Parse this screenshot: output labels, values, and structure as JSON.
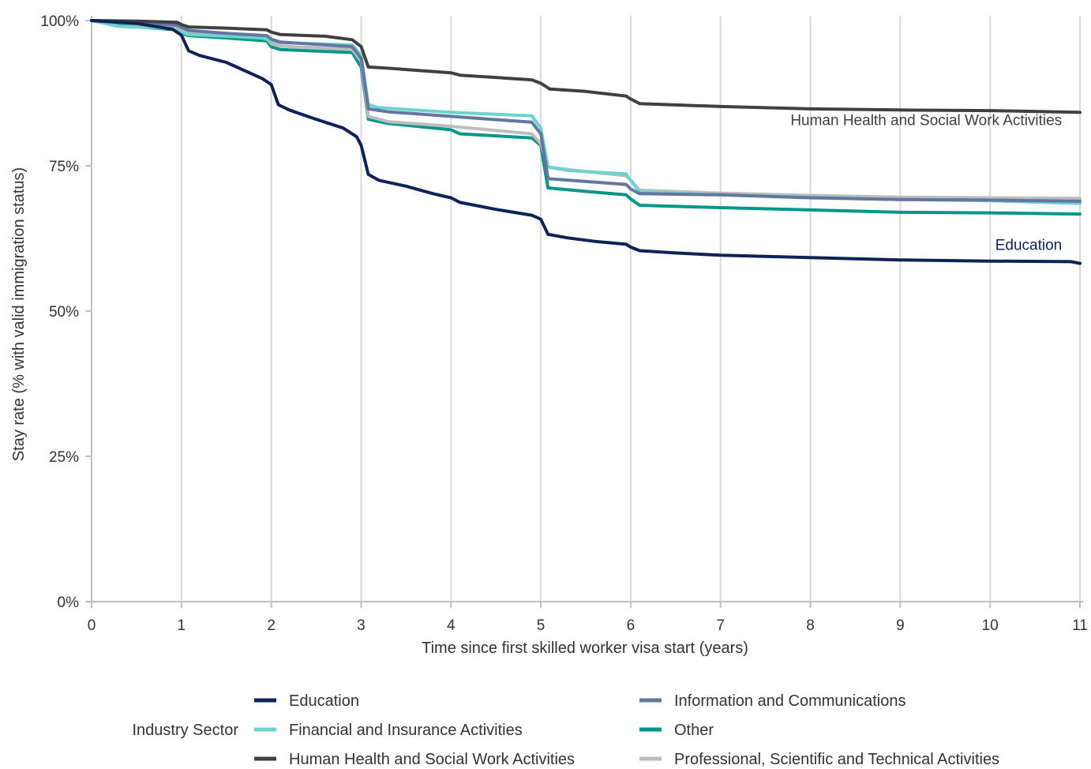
{
  "chart_data": {
    "type": "line",
    "xlabel": "Time since first skilled worker visa start (years)",
    "ylabel": "Stay rate (% with valid immigration status)",
    "xlim": [
      0,
      11
    ],
    "ylim": [
      0,
      100
    ],
    "x_ticks": [
      "0",
      "1",
      "2",
      "3",
      "4",
      "5",
      "6",
      "7",
      "8",
      "9",
      "10",
      "11"
    ],
    "y_ticks": [
      {
        "value": 0,
        "label": "0%"
      },
      {
        "value": 25,
        "label": "25%"
      },
      {
        "value": 50,
        "label": "50%"
      },
      {
        "value": 75,
        "label": "75%"
      },
      {
        "value": 100,
        "label": "100%"
      }
    ],
    "grid": "vertical",
    "legend": {
      "title": "Industry Sector",
      "position": "bottom"
    },
    "annotations": [
      {
        "text": "Human Health and Social Work Activities",
        "x": 10.8,
        "y": 82.0,
        "color": "#404040"
      },
      {
        "text": "Education",
        "x": 10.8,
        "y": 60.5,
        "color": "#0d2357"
      }
    ],
    "series": [
      {
        "name": "Education",
        "color": "#0d2357",
        "points": [
          [
            0,
            100
          ],
          [
            0.5,
            99.5
          ],
          [
            0.9,
            98.5
          ],
          [
            1.0,
            97.5
          ],
          [
            1.08,
            94.8
          ],
          [
            1.2,
            94.0
          ],
          [
            1.5,
            92.8
          ],
          [
            1.9,
            90.0
          ],
          [
            2.0,
            89.0
          ],
          [
            2.08,
            85.5
          ],
          [
            2.2,
            84.6
          ],
          [
            2.5,
            83.0
          ],
          [
            2.8,
            81.5
          ],
          [
            2.95,
            80.0
          ],
          [
            3.0,
            78.5
          ],
          [
            3.08,
            73.5
          ],
          [
            3.2,
            72.5
          ],
          [
            3.5,
            71.5
          ],
          [
            3.8,
            70.2
          ],
          [
            4.0,
            69.5
          ],
          [
            4.1,
            68.7
          ],
          [
            4.5,
            67.5
          ],
          [
            4.9,
            66.5
          ],
          [
            5.0,
            65.8
          ],
          [
            5.08,
            63.2
          ],
          [
            5.3,
            62.6
          ],
          [
            5.6,
            62.0
          ],
          [
            5.95,
            61.5
          ],
          [
            6.0,
            61.0
          ],
          [
            6.1,
            60.4
          ],
          [
            6.5,
            60.0
          ],
          [
            7,
            59.6
          ],
          [
            8,
            59.2
          ],
          [
            9,
            58.8
          ],
          [
            10,
            58.6
          ],
          [
            10.9,
            58.5
          ],
          [
            11,
            58.2
          ]
        ]
      },
      {
        "name": "Financial and Insurance Activities",
        "color": "#6fd3cd",
        "points": [
          [
            0,
            100
          ],
          [
            0.3,
            99.0
          ],
          [
            0.9,
            98.6
          ],
          [
            1.0,
            98.0
          ],
          [
            1.08,
            97.6
          ],
          [
            1.5,
            97.3
          ],
          [
            1.9,
            97.0
          ],
          [
            2.0,
            96.5
          ],
          [
            2.1,
            96.2
          ],
          [
            2.9,
            95.8
          ],
          [
            3.0,
            94.0
          ],
          [
            3.08,
            85.5
          ],
          [
            3.2,
            85.0
          ],
          [
            4,
            84.2
          ],
          [
            4.9,
            83.6
          ],
          [
            5.0,
            81.5
          ],
          [
            5.08,
            74.8
          ],
          [
            5.3,
            74.2
          ],
          [
            5.95,
            73.6
          ],
          [
            6.0,
            72.5
          ],
          [
            6.1,
            70.5
          ],
          [
            7,
            70.0
          ],
          [
            8,
            69.6
          ],
          [
            9,
            69.2
          ],
          [
            10,
            69.0
          ],
          [
            11,
            68.5
          ]
        ]
      },
      {
        "name": "Human Health and Social Work Activities",
        "color": "#404040",
        "points": [
          [
            0,
            100
          ],
          [
            0.5,
            99.9
          ],
          [
            0.95,
            99.7
          ],
          [
            1.0,
            99.3
          ],
          [
            1.08,
            98.9
          ],
          [
            1.5,
            98.7
          ],
          [
            1.95,
            98.4
          ],
          [
            2.0,
            98.0
          ],
          [
            2.1,
            97.6
          ],
          [
            2.6,
            97.3
          ],
          [
            2.9,
            96.7
          ],
          [
            3.0,
            95.5
          ],
          [
            3.08,
            92.0
          ],
          [
            3.3,
            91.8
          ],
          [
            4,
            91.0
          ],
          [
            4.1,
            90.6
          ],
          [
            4.9,
            89.8
          ],
          [
            5.0,
            89.2
          ],
          [
            5.1,
            88.2
          ],
          [
            5.5,
            87.8
          ],
          [
            5.95,
            87.0
          ],
          [
            6.0,
            86.5
          ],
          [
            6.1,
            85.7
          ],
          [
            7,
            85.2
          ],
          [
            8,
            84.8
          ],
          [
            9,
            84.6
          ],
          [
            10,
            84.5
          ],
          [
            11,
            84.2
          ]
        ]
      },
      {
        "name": "Information and Communications",
        "color": "#6475a1",
        "points": [
          [
            0,
            100
          ],
          [
            0.5,
            99.6
          ],
          [
            0.95,
            99.2
          ],
          [
            1.0,
            98.8
          ],
          [
            1.08,
            98.3
          ],
          [
            1.5,
            97.8
          ],
          [
            1.95,
            97.4
          ],
          [
            2.0,
            96.8
          ],
          [
            2.1,
            96.3
          ],
          [
            2.9,
            95.5
          ],
          [
            3.0,
            93.5
          ],
          [
            3.08,
            84.8
          ],
          [
            3.3,
            84.3
          ],
          [
            4,
            83.5
          ],
          [
            4.9,
            82.5
          ],
          [
            5.0,
            80.5
          ],
          [
            5.08,
            72.8
          ],
          [
            5.5,
            72.3
          ],
          [
            5.95,
            71.8
          ],
          [
            6.0,
            71.0
          ],
          [
            6.1,
            70.2
          ],
          [
            7,
            70.0
          ],
          [
            8,
            69.5
          ],
          [
            9,
            69.2
          ],
          [
            10,
            69.1
          ],
          [
            11,
            68.9
          ]
        ]
      },
      {
        "name": "Other",
        "color": "#009688",
        "points": [
          [
            0,
            100
          ],
          [
            0.5,
            98.9
          ],
          [
            0.95,
            98.4
          ],
          [
            1.0,
            97.8
          ],
          [
            1.08,
            97.4
          ],
          [
            1.5,
            97.0
          ],
          [
            1.95,
            96.5
          ],
          [
            2.0,
            95.5
          ],
          [
            2.1,
            95.0
          ],
          [
            2.9,
            94.5
          ],
          [
            3.0,
            92.0
          ],
          [
            3.08,
            83.0
          ],
          [
            3.3,
            82.3
          ],
          [
            4,
            81.2
          ],
          [
            4.1,
            80.5
          ],
          [
            4.9,
            79.8
          ],
          [
            5.0,
            78.5
          ],
          [
            5.08,
            71.2
          ],
          [
            5.5,
            70.6
          ],
          [
            5.95,
            70.0
          ],
          [
            6.0,
            69.3
          ],
          [
            6.1,
            68.2
          ],
          [
            7,
            67.8
          ],
          [
            8,
            67.4
          ],
          [
            9,
            67.0
          ],
          [
            10,
            66.9
          ],
          [
            11,
            66.7
          ]
        ]
      },
      {
        "name": "Professional, Scientific and Technical Activities",
        "color": "#bdbdbd",
        "points": [
          [
            0,
            100
          ],
          [
            0.5,
            99.4
          ],
          [
            0.95,
            99.0
          ],
          [
            1.0,
            98.5
          ],
          [
            1.08,
            98.0
          ],
          [
            1.5,
            97.5
          ],
          [
            1.95,
            97.0
          ],
          [
            2.0,
            96.0
          ],
          [
            2.1,
            95.6
          ],
          [
            2.9,
            95.0
          ],
          [
            3.0,
            93.0
          ],
          [
            3.08,
            83.5
          ],
          [
            3.3,
            82.6
          ],
          [
            4,
            81.8
          ],
          [
            4.9,
            80.5
          ],
          [
            5.0,
            78.8
          ],
          [
            5.08,
            74.8
          ],
          [
            5.5,
            74.0
          ],
          [
            5.95,
            73.3
          ],
          [
            6.0,
            72.5
          ],
          [
            6.1,
            70.8
          ],
          [
            7,
            70.3
          ],
          [
            8,
            69.9
          ],
          [
            9,
            69.6
          ],
          [
            10,
            69.5
          ],
          [
            11,
            69.4
          ]
        ]
      }
    ]
  }
}
